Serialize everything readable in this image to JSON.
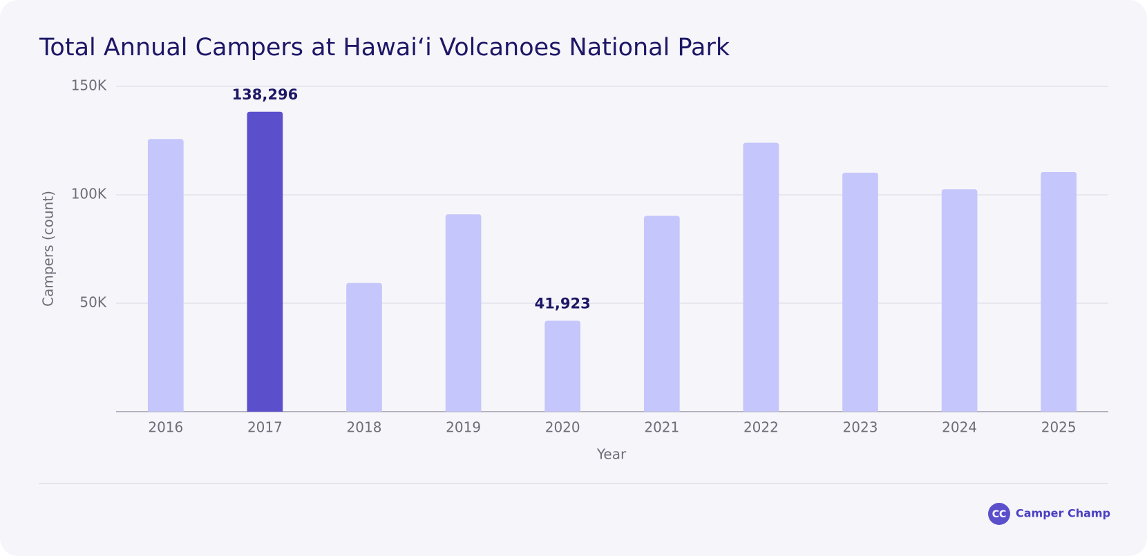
{
  "chart_data": {
    "type": "bar",
    "title": "Total Annual Campers at Hawaiʻi Volcanoes National Park",
    "x_label": "Year",
    "y_label": "Campers (count)",
    "categories": [
      "2016",
      "2017",
      "2018",
      "2019",
      "2020",
      "2021",
      "2022",
      "2023",
      "2024",
      "2025"
    ],
    "values": [
      125700,
      138296,
      59300,
      91000,
      41923,
      90300,
      124000,
      110200,
      102500,
      110500
    ],
    "value_labels": [
      null,
      "138,296",
      null,
      null,
      "41,923",
      null,
      null,
      null,
      null,
      null
    ],
    "colors": [
      "#c5c6fb",
      "#5b4fcc",
      "#c5c6fb",
      "#c5c6fb",
      "#c5c6fb",
      "#c5c6fb",
      "#c5c6fb",
      "#c5c6fb",
      "#c5c6fb",
      "#c5c6fb"
    ],
    "ylim": [
      0,
      150000
    ],
    "yticks": [
      {
        "value": 50000,
        "label": "50K"
      },
      {
        "value": 100000,
        "label": "100K"
      },
      {
        "value": 150000,
        "label": "150K"
      }
    ],
    "grid": true
  },
  "brand": {
    "logo": "CC",
    "name": "Camper Champ"
  }
}
